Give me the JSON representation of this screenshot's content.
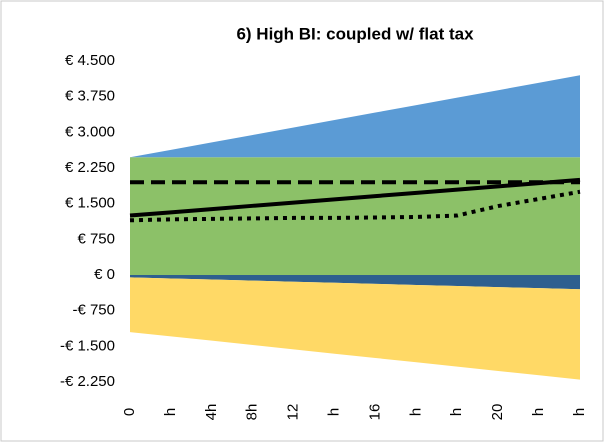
{
  "chart_data": {
    "type": "stacked-area-line",
    "title": "6) High BI: coupled w/ flat tax",
    "categories": [
      "0",
      "h",
      "4h",
      "8h",
      "12",
      "h",
      "16",
      "h",
      "h",
      "20",
      "h",
      "h"
    ],
    "ylim": [
      -2250,
      4500
    ],
    "yticks": [
      {
        "value": -2250,
        "label": "-€ 2.250"
      },
      {
        "value": -1500,
        "label": "-€ 1.500"
      },
      {
        "value": -750,
        "label": "-€ 750"
      },
      {
        "value": 0,
        "label": "€ 0"
      },
      {
        "value": 750,
        "label": "€ 750"
      },
      {
        "value": 1500,
        "label": "€ 1.500"
      },
      {
        "value": 2250,
        "label": "€ 2.250"
      },
      {
        "value": 3000,
        "label": "€ 3.000"
      },
      {
        "value": 3750,
        "label": "€ 3.750"
      },
      {
        "value": 4500,
        "label": "€ 4.500"
      }
    ],
    "grid": false,
    "series": [
      {
        "kind": "area",
        "color": "#8cc168",
        "values": [
          2475,
          2475,
          2475,
          2475,
          2475,
          2475,
          2475,
          2475,
          2475,
          2475,
          2475,
          2475
        ]
      },
      {
        "kind": "area",
        "color": "#5b9bd5",
        "values": [
          0,
          157,
          314,
          470,
          627,
          784,
          941,
          1098,
          1255,
          1411,
          1568,
          1725
        ]
      },
      {
        "kind": "area",
        "color": "#2e5f8f",
        "values": [
          -50,
          -73,
          -95,
          -118,
          -141,
          -164,
          -186,
          -209,
          -232,
          -255,
          -277,
          -300
        ]
      },
      {
        "kind": "area",
        "color": "#ffd966",
        "values": [
          -1150,
          -1218,
          -1286,
          -1355,
          -1423,
          -1491,
          -1559,
          -1627,
          -1695,
          -1764,
          -1832,
          -1900
        ]
      },
      {
        "kind": "line",
        "dash": "dashed",
        "color": "#000000",
        "values": [
          1950,
          1950,
          1950,
          1950,
          1950,
          1950,
          1950,
          1950,
          1950,
          1950,
          1950,
          1950
        ]
      },
      {
        "kind": "line",
        "dash": "dotted",
        "color": "#000000",
        "values": [
          1150,
          1170,
          1180,
          1190,
          1200,
          1200,
          1210,
          1220,
          1250,
          1450,
          1600,
          1750
        ]
      },
      {
        "kind": "line",
        "dash": "solid",
        "color": "#000000",
        "values": [
          1250,
          1318,
          1386,
          1455,
          1523,
          1591,
          1659,
          1727,
          1795,
          1864,
          1932,
          2000
        ]
      }
    ]
  }
}
